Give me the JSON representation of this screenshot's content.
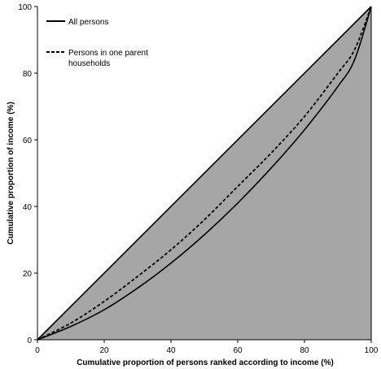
{
  "chart_data": {
    "type": "line",
    "xlabel": "Cumulative proportion of persons ranked according to income (%)",
    "ylabel": "Cumulative proportion of income (%)",
    "xlim": [
      0,
      100
    ],
    "ylim": [
      0,
      100
    ],
    "x_ticks": [
      0,
      20,
      40,
      60,
      80,
      100
    ],
    "y_ticks": [
      0,
      20,
      40,
      60,
      80,
      100
    ],
    "grid": false,
    "legend_position": "top-left",
    "area_color": "#a6a6a6",
    "series": [
      {
        "name": "All persons",
        "style": "solid",
        "x": [
          0,
          10,
          20,
          30,
          40,
          50,
          60,
          70,
          80,
          90,
          95,
          100
        ],
        "y": [
          0,
          4,
          9,
          15.5,
          23,
          31.5,
          41,
          51.5,
          63,
          76,
          84,
          100
        ]
      },
      {
        "name": "Persons in one parent households",
        "style": "dashed",
        "x": [
          0,
          10,
          20,
          30,
          40,
          50,
          60,
          70,
          80,
          90,
          95,
          100
        ],
        "y": [
          0,
          5,
          11.5,
          19,
          27,
          36,
          46,
          56,
          67,
          80,
          87,
          100
        ]
      },
      {
        "name": "",
        "style": "solid",
        "x": [
          0,
          100
        ],
        "y": [
          0,
          100
        ]
      }
    ]
  }
}
